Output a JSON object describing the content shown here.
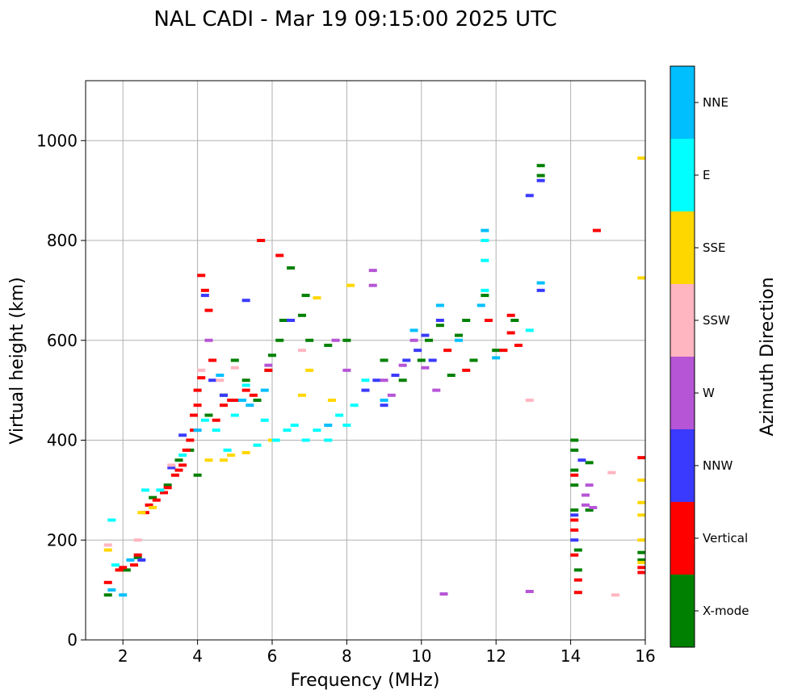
{
  "chart_data": {
    "type": "scatter",
    "title": "NAL CADI - Mar 19 09:15:00 2025 UTC",
    "xlabel": "Frequency (MHz)",
    "ylabel": "Virtual height (km)",
    "xlim": [
      1,
      16
    ],
    "ylim": [
      0,
      1120
    ],
    "xticks": [
      2,
      4,
      6,
      8,
      10,
      12,
      14,
      16
    ],
    "yticks": [
      0,
      200,
      400,
      600,
      800,
      1000
    ],
    "grid": true,
    "colorbar": {
      "label": "Azimuth Direction",
      "position": "right",
      "categories": [
        {
          "name": "X-mode",
          "color": "#008000"
        },
        {
          "name": "Vertical",
          "color": "#ff0000"
        },
        {
          "name": "NNW",
          "color": "#3a3aff"
        },
        {
          "name": "W",
          "color": "#b655d6"
        },
        {
          "name": "SSW",
          "color": "#ffb6c1"
        },
        {
          "name": "SSE",
          "color": "#ffd700"
        },
        {
          "name": "E",
          "color": "#00ffff"
        },
        {
          "name": "NNE",
          "color": "#00bfff"
        }
      ]
    },
    "series": [
      {
        "name": "X-mode",
        "points": [
          [
            1.6,
            90
          ],
          [
            2.1,
            140
          ],
          [
            2.4,
            165
          ],
          [
            2.8,
            285
          ],
          [
            3.2,
            310
          ],
          [
            3.5,
            360
          ],
          [
            3.8,
            380
          ],
          [
            4.0,
            330
          ],
          [
            4.3,
            450
          ],
          [
            4.7,
            490
          ],
          [
            5.0,
            560
          ],
          [
            5.3,
            520
          ],
          [
            5.6,
            480
          ],
          [
            5.9,
            540
          ],
          [
            6.0,
            570
          ],
          [
            6.2,
            600
          ],
          [
            6.3,
            640
          ],
          [
            6.5,
            745
          ],
          [
            6.8,
            650
          ],
          [
            6.9,
            690
          ],
          [
            7.0,
            600
          ],
          [
            7.5,
            590
          ],
          [
            8.0,
            600
          ],
          [
            9.0,
            560
          ],
          [
            9.5,
            520
          ],
          [
            10.0,
            560
          ],
          [
            10.2,
            600
          ],
          [
            10.5,
            630
          ],
          [
            10.8,
            530
          ],
          [
            11.0,
            610
          ],
          [
            11.2,
            640
          ],
          [
            11.4,
            560
          ],
          [
            11.7,
            690
          ],
          [
            12.0,
            580
          ],
          [
            12.5,
            640
          ],
          [
            13.2,
            950
          ],
          [
            13.2,
            930
          ],
          [
            14.1,
            400
          ],
          [
            14.1,
            380
          ],
          [
            14.1,
            340
          ],
          [
            14.1,
            310
          ],
          [
            14.1,
            260
          ],
          [
            14.2,
            180
          ],
          [
            14.2,
            140
          ],
          [
            14.5,
            355
          ],
          [
            14.5,
            260
          ],
          [
            15.9,
            175
          ],
          [
            15.9,
            160
          ]
        ]
      },
      {
        "name": "Vertical",
        "points": [
          [
            1.6,
            115
          ],
          [
            1.9,
            140
          ],
          [
            2.0,
            145
          ],
          [
            2.3,
            150
          ],
          [
            2.4,
            170
          ],
          [
            2.6,
            255
          ],
          [
            2.7,
            270
          ],
          [
            2.9,
            280
          ],
          [
            3.1,
            295
          ],
          [
            3.2,
            305
          ],
          [
            3.4,
            330
          ],
          [
            3.5,
            340
          ],
          [
            3.6,
            350
          ],
          [
            3.7,
            380
          ],
          [
            3.8,
            400
          ],
          [
            3.9,
            420
          ],
          [
            3.9,
            450
          ],
          [
            4.0,
            470
          ],
          [
            4.0,
            500
          ],
          [
            4.1,
            525
          ],
          [
            4.1,
            730
          ],
          [
            4.2,
            700
          ],
          [
            4.3,
            660
          ],
          [
            4.4,
            560
          ],
          [
            4.5,
            440
          ],
          [
            4.7,
            470
          ],
          [
            4.9,
            480
          ],
          [
            5.1,
            480
          ],
          [
            5.3,
            500
          ],
          [
            5.5,
            490
          ],
          [
            5.7,
            800
          ],
          [
            5.9,
            540
          ],
          [
            6.2,
            770
          ],
          [
            10.7,
            580
          ],
          [
            11.2,
            540
          ],
          [
            11.8,
            640
          ],
          [
            12.2,
            580
          ],
          [
            12.4,
            650
          ],
          [
            12.4,
            615
          ],
          [
            12.6,
            590
          ],
          [
            14.1,
            330
          ],
          [
            14.1,
            240
          ],
          [
            14.1,
            220
          ],
          [
            14.1,
            170
          ],
          [
            14.2,
            120
          ],
          [
            14.2,
            95
          ],
          [
            14.7,
            820
          ],
          [
            15.9,
            365
          ],
          [
            15.9,
            135
          ],
          [
            15.9,
            145
          ]
        ]
      },
      {
        "name": "NNW",
        "points": [
          [
            2.5,
            160
          ],
          [
            3.3,
            345
          ],
          [
            3.6,
            410
          ],
          [
            4.2,
            690
          ],
          [
            4.4,
            520
          ],
          [
            4.7,
            490
          ],
          [
            5.3,
            680
          ],
          [
            6.5,
            640
          ],
          [
            8.5,
            500
          ],
          [
            8.8,
            520
          ],
          [
            9.0,
            470
          ],
          [
            9.3,
            530
          ],
          [
            9.6,
            560
          ],
          [
            9.9,
            580
          ],
          [
            10.1,
            610
          ],
          [
            10.3,
            560
          ],
          [
            10.5,
            640
          ],
          [
            12.9,
            890
          ],
          [
            13.2,
            920
          ],
          [
            13.2,
            700
          ],
          [
            14.1,
            250
          ],
          [
            14.1,
            200
          ],
          [
            14.3,
            360
          ]
        ]
      },
      {
        "name": "W",
        "points": [
          [
            4.3,
            600
          ],
          [
            5.9,
            550
          ],
          [
            7.7,
            600
          ],
          [
            8.0,
            540
          ],
          [
            8.7,
            740
          ],
          [
            8.7,
            710
          ],
          [
            9.0,
            520
          ],
          [
            9.2,
            490
          ],
          [
            9.5,
            550
          ],
          [
            9.8,
            600
          ],
          [
            10.1,
            545
          ],
          [
            10.4,
            500
          ],
          [
            10.6,
            92
          ],
          [
            12.9,
            97
          ],
          [
            14.4,
            290
          ],
          [
            14.4,
            270
          ],
          [
            14.5,
            310
          ],
          [
            14.6,
            265
          ]
        ]
      },
      {
        "name": "SSW",
        "points": [
          [
            1.6,
            190
          ],
          [
            2.4,
            200
          ],
          [
            3.3,
            350
          ],
          [
            4.1,
            540
          ],
          [
            4.6,
            520
          ],
          [
            5.0,
            545
          ],
          [
            6.8,
            580
          ],
          [
            12.9,
            480
          ],
          [
            15.1,
            335
          ],
          [
            15.2,
            90
          ]
        ]
      },
      {
        "name": "SSE",
        "points": [
          [
            1.6,
            180
          ],
          [
            2.5,
            255
          ],
          [
            2.8,
            265
          ],
          [
            4.3,
            360
          ],
          [
            4.7,
            360
          ],
          [
            4.9,
            370
          ],
          [
            5.3,
            375
          ],
          [
            5.6,
            390
          ],
          [
            6.0,
            400
          ],
          [
            6.8,
            490
          ],
          [
            7.0,
            540
          ],
          [
            7.2,
            685
          ],
          [
            7.6,
            480
          ],
          [
            8.1,
            710
          ],
          [
            15.9,
            965
          ],
          [
            15.9,
            725
          ],
          [
            15.9,
            320
          ],
          [
            15.9,
            275
          ],
          [
            15.9,
            250
          ],
          [
            15.9,
            200
          ],
          [
            15.9,
            155
          ]
        ]
      },
      {
        "name": "E",
        "points": [
          [
            1.7,
            240
          ],
          [
            1.8,
            150
          ],
          [
            2.6,
            300
          ],
          [
            3.0,
            300
          ],
          [
            3.6,
            370
          ],
          [
            4.2,
            440
          ],
          [
            4.5,
            420
          ],
          [
            4.8,
            380
          ],
          [
            5.0,
            450
          ],
          [
            5.3,
            510
          ],
          [
            5.6,
            390
          ],
          [
            5.8,
            440
          ],
          [
            6.1,
            400
          ],
          [
            6.4,
            420
          ],
          [
            6.6,
            430
          ],
          [
            6.9,
            400
          ],
          [
            7.2,
            420
          ],
          [
            7.5,
            400
          ],
          [
            7.8,
            450
          ],
          [
            8.0,
            430
          ],
          [
            8.2,
            470
          ],
          [
            8.5,
            520
          ],
          [
            11.7,
            800
          ],
          [
            11.7,
            760
          ],
          [
            11.7,
            700
          ],
          [
            12.9,
            620
          ]
        ]
      },
      {
        "name": "NNE",
        "points": [
          [
            1.7,
            100
          ],
          [
            2.0,
            90
          ],
          [
            2.2,
            160
          ],
          [
            4.0,
            420
          ],
          [
            4.6,
            530
          ],
          [
            5.2,
            480
          ],
          [
            5.4,
            470
          ],
          [
            5.8,
            500
          ],
          [
            7.5,
            430
          ],
          [
            9.0,
            480
          ],
          [
            9.8,
            620
          ],
          [
            10.5,
            670
          ],
          [
            11.0,
            600
          ],
          [
            11.6,
            670
          ],
          [
            11.7,
            820
          ],
          [
            12.0,
            565
          ],
          [
            13.2,
            715
          ]
        ]
      }
    ]
  }
}
